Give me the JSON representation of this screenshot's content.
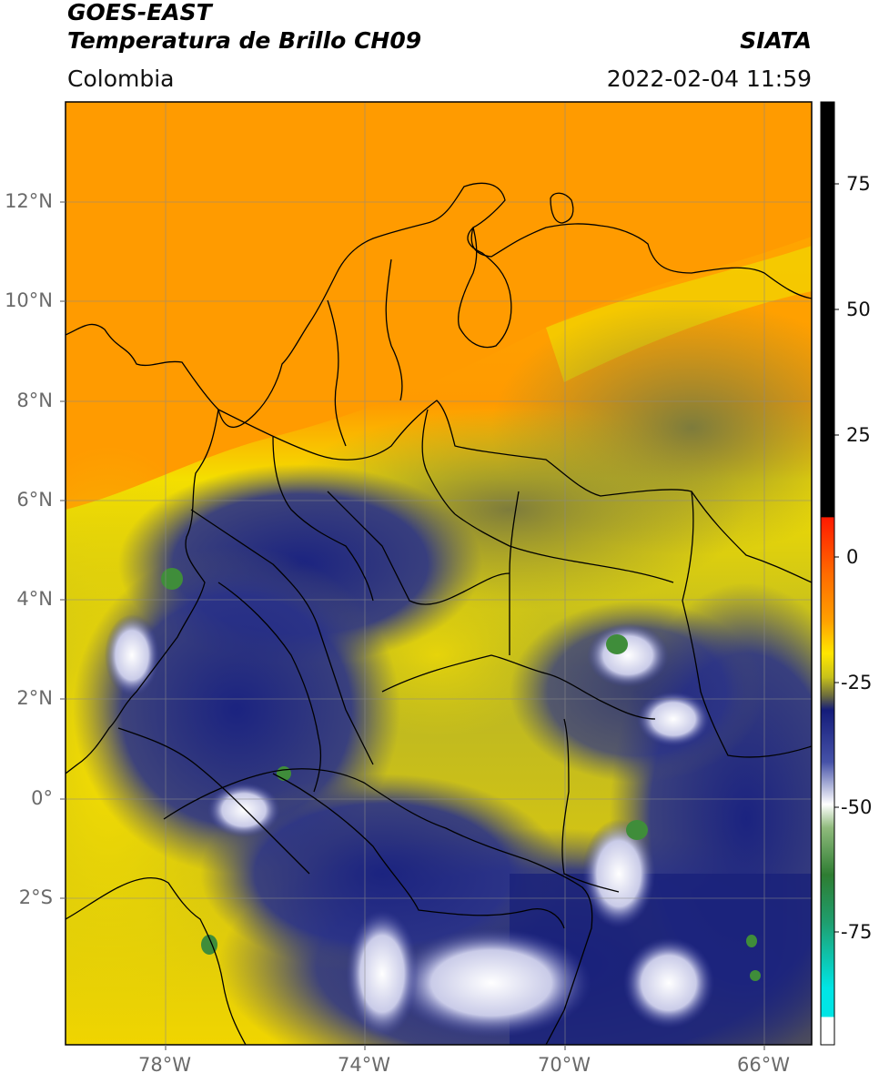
{
  "header": {
    "satellite": "GOES-EAST",
    "product": "Temperatura de Brillo CH09",
    "region": "Colombia",
    "source": "SIATA",
    "datetime": "2022-02-04 11:59"
  },
  "map": {
    "lat_labels": [
      "12°N",
      "10°N",
      "8°N",
      "6°N",
      "4°N",
      "2°N",
      "0°",
      "2°S"
    ],
    "lon_labels": [
      "78°W",
      "74°W",
      "70°W",
      "66°W"
    ]
  },
  "colorbar": {
    "ticks": [
      "75",
      "50",
      "25",
      "0",
      "-25",
      "-50",
      "-75"
    ],
    "colors": [
      "#000000",
      "#ff2a00",
      "#ff9500",
      "#ffe600",
      "#6e6e3a",
      "#141c7a",
      "#ffffff",
      "#2e7d32",
      "#00e5e5"
    ]
  }
}
